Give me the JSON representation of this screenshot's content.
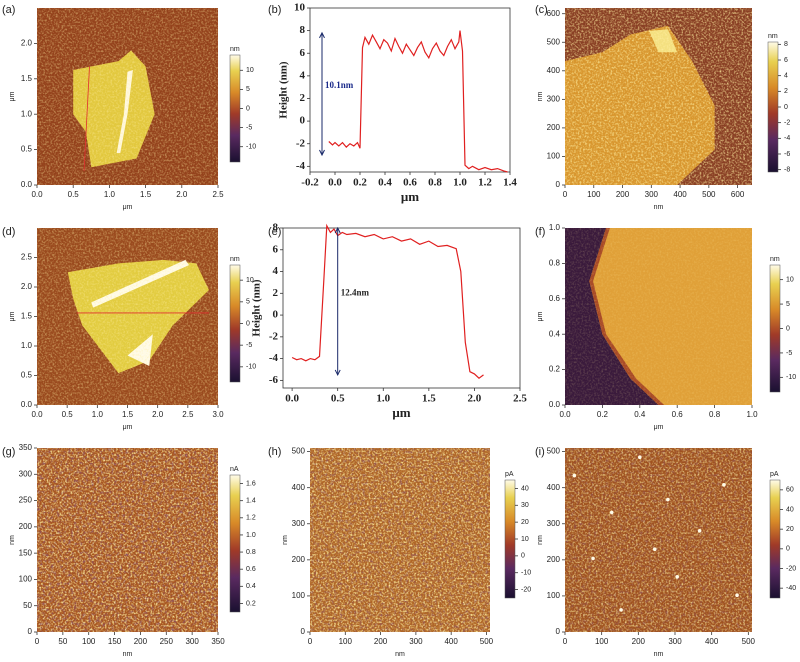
{
  "chart_data": [
    {
      "type": "image",
      "label": "(a)",
      "xlabel": "μm",
      "ylabel": "μm",
      "xlim": [
        0,
        2.5
      ],
      "ylim": [
        0,
        2.5
      ],
      "xticks": [
        {
          "value": 0,
          "label": "0.0"
        },
        0.5,
        {
          "value": 1,
          "label": "1.0"
        },
        1.5,
        {
          "value": 2,
          "label": "2.0"
        },
        2.5
      ],
      "yticks": [
        {
          "value": 0,
          "label": "0.0"
        },
        0.5,
        {
          "value": 1,
          "label": "1.0"
        },
        1.5,
        {
          "value": 2,
          "label": "2.0"
        }
      ],
      "colorbar": {
        "label": "nm",
        "lim": [
          -14,
          14
        ],
        "ticks": [
          10,
          5,
          0,
          -5,
          -10
        ]
      }
    },
    {
      "type": "line",
      "label": "(b)",
      "xlabel": "μm",
      "ylabel": "Height (nm)",
      "annotation": "10.1nm",
      "color": "#e02020",
      "xlim": [
        -0.2,
        1.4
      ],
      "ylim": [
        -4.5,
        10
      ],
      "xticks": [
        -0.2,
        {
          "value": 0,
          "label": "0.0"
        },
        0.2,
        0.4,
        0.6,
        0.8,
        {
          "value": 1,
          "label": "1.0"
        },
        1.2,
        1.4
      ],
      "yticks": [
        -4,
        -2,
        0,
        2,
        4,
        6,
        8,
        10
      ],
      "x": [
        -0.05,
        -0.02,
        0.0,
        0.03,
        0.06,
        0.09,
        0.12,
        0.15,
        0.18,
        0.2,
        0.22,
        0.24,
        0.27,
        0.3,
        0.33,
        0.36,
        0.39,
        0.42,
        0.45,
        0.48,
        0.51,
        0.54,
        0.57,
        0.6,
        0.63,
        0.66,
        0.69,
        0.72,
        0.75,
        0.78,
        0.81,
        0.84,
        0.87,
        0.9,
        0.93,
        0.96,
        0.99,
        1.0,
        1.02,
        1.04,
        1.07,
        1.1,
        1.15,
        1.2,
        1.25,
        1.3,
        1.35,
        1.38
      ],
      "values": [
        -1.8,
        -2.1,
        -1.9,
        -2.2,
        -1.9,
        -2.3,
        -2.0,
        -2.2,
        -1.9,
        -2.4,
        6.5,
        7.4,
        6.8,
        7.6,
        7.0,
        6.4,
        7.2,
        6.9,
        6.2,
        7.3,
        6.6,
        6.0,
        6.8,
        6.3,
        5.8,
        6.5,
        7.0,
        6.1,
        5.6,
        6.4,
        6.9,
        6.2,
        5.8,
        6.6,
        7.2,
        6.4,
        7.0,
        8.0,
        6.2,
        -3.9,
        -4.2,
        -4.0,
        -4.3,
        -4.1,
        -4.3,
        -4.2,
        -4.4,
        -4.5
      ]
    },
    {
      "type": "image",
      "label": "(c)",
      "xlabel": "nm",
      "ylabel": "nm",
      "xlim": [
        0,
        650
      ],
      "ylim": [
        0,
        620
      ],
      "xticks": [
        0,
        100,
        200,
        300,
        400,
        500,
        600
      ],
      "yticks": [
        0,
        100,
        200,
        300,
        400,
        500,
        600
      ],
      "colorbar": {
        "label": "nm",
        "lim": [
          -8.3,
          8.3
        ],
        "ticks": [
          8,
          6,
          4,
          2,
          0,
          -2,
          -4,
          -6,
          -8
        ]
      }
    },
    {
      "type": "image",
      "label": "(d)",
      "xlabel": "μm",
      "ylabel": "μm",
      "xlim": [
        0,
        3
      ],
      "ylim": [
        0,
        3
      ],
      "xticks": [
        {
          "value": 0,
          "label": "0.0"
        },
        0.5,
        {
          "value": 1,
          "label": "1.0"
        },
        1.5,
        {
          "value": 2,
          "label": "2.0"
        },
        2.5,
        {
          "value": 3,
          "label": "3.0"
        }
      ],
      "yticks": [
        {
          "value": 0,
          "label": "0.0"
        },
        0.5,
        {
          "value": 1,
          "label": "1.0"
        },
        1.5,
        {
          "value": 2,
          "label": "2.0"
        },
        2.5
      ],
      "colorbar": {
        "label": "nm",
        "lim": [
          -13.5,
          13.5
        ],
        "ticks": [
          10,
          5,
          0,
          -5,
          -10
        ]
      }
    },
    {
      "type": "line",
      "label": "(e)",
      "xlabel": "μm",
      "ylabel": "Height (nm)",
      "annotation": "12.4nm",
      "color": "#e02020",
      "xlim": [
        -0.1,
        2.5
      ],
      "ylim": [
        -6.7,
        8
      ],
      "xticks": [
        {
          "value": 0,
          "label": "0.0"
        },
        0.5,
        {
          "value": 1,
          "label": "1.0"
        },
        1.5,
        {
          "value": 2,
          "label": "2.0"
        },
        2.5
      ],
      "yticks": [
        -6,
        -4,
        -2,
        0,
        2,
        4,
        6,
        8
      ],
      "x": [
        0.0,
        0.05,
        0.1,
        0.15,
        0.2,
        0.25,
        0.3,
        0.35,
        0.38,
        0.42,
        0.46,
        0.5,
        0.55,
        0.6,
        0.7,
        0.8,
        0.9,
        1.0,
        1.1,
        1.2,
        1.3,
        1.4,
        1.5,
        1.6,
        1.7,
        1.8,
        1.85,
        1.9,
        1.95,
        2.0,
        2.05,
        2.1
      ],
      "values": [
        -3.9,
        -4.1,
        -4.0,
        -4.2,
        -4.0,
        -4.1,
        -3.8,
        3.5,
        8.2,
        7.6,
        7.9,
        7.3,
        7.6,
        7.4,
        7.5,
        7.2,
        7.4,
        7.0,
        7.2,
        6.8,
        7.0,
        6.5,
        6.8,
        6.3,
        6.4,
        6.1,
        4.0,
        -2.5,
        -5.2,
        -5.4,
        -5.8,
        -5.5
      ]
    },
    {
      "type": "image",
      "label": "(f)",
      "xlabel": "μm",
      "ylabel": "μm",
      "xlim": [
        0,
        1
      ],
      "ylim": [
        0,
        1
      ],
      "xticks": [
        {
          "value": 0,
          "label": "0.0"
        },
        0.2,
        0.4,
        0.6,
        0.8,
        {
          "value": 1,
          "label": "1.0"
        }
      ],
      "yticks": [
        {
          "value": 0,
          "label": "0.0"
        },
        0.2,
        0.4,
        0.6,
        0.8,
        {
          "value": 1,
          "label": "1.0"
        }
      ],
      "colorbar": {
        "label": "nm",
        "lim": [
          -13,
          13
        ],
        "ticks": [
          10,
          5,
          0,
          -5,
          -10
        ]
      }
    },
    {
      "type": "image",
      "label": "(g)",
      "xlabel": "nm",
      "ylabel": "nm",
      "xlim": [
        0,
        350
      ],
      "ylim": [
        0,
        350
      ],
      "xticks": [
        0,
        50,
        100,
        150,
        200,
        250,
        300,
        350
      ],
      "yticks": [
        0,
        50,
        100,
        150,
        200,
        250,
        300,
        350
      ],
      "colorbar": {
        "label": "nA",
        "lim": [
          0.1,
          1.7
        ],
        "ticks": [
          1.6,
          1.4,
          1.2,
          {
            "value": 1,
            "label": "1.0"
          },
          0.8,
          0.6,
          0.4,
          0.2
        ]
      }
    },
    {
      "type": "image",
      "label": "(h)",
      "xlabel": "nm",
      "ylabel": "nm",
      "xlim": [
        0,
        510
      ],
      "ylim": [
        0,
        510
      ],
      "xticks": [
        0,
        100,
        200,
        300,
        400,
        500
      ],
      "yticks": [
        0,
        100,
        200,
        300,
        400,
        500
      ],
      "colorbar": {
        "label": "pA",
        "lim": [
          -25,
          45
        ],
        "ticks": [
          40,
          30,
          20,
          10,
          0,
          -10,
          -20
        ]
      }
    },
    {
      "type": "image",
      "label": "(i)",
      "xlabel": "nm",
      "ylabel": "nm",
      "xlim": [
        0,
        510
      ],
      "ylim": [
        0,
        510
      ],
      "xticks": [
        0,
        100,
        200,
        300,
        400,
        500
      ],
      "yticks": [
        0,
        100,
        200,
        300,
        400,
        500
      ],
      "colorbar": {
        "label": "pA",
        "lim": [
          -50,
          70
        ],
        "ticks": [
          60,
          40,
          20,
          0,
          -20,
          -40
        ]
      }
    }
  ]
}
